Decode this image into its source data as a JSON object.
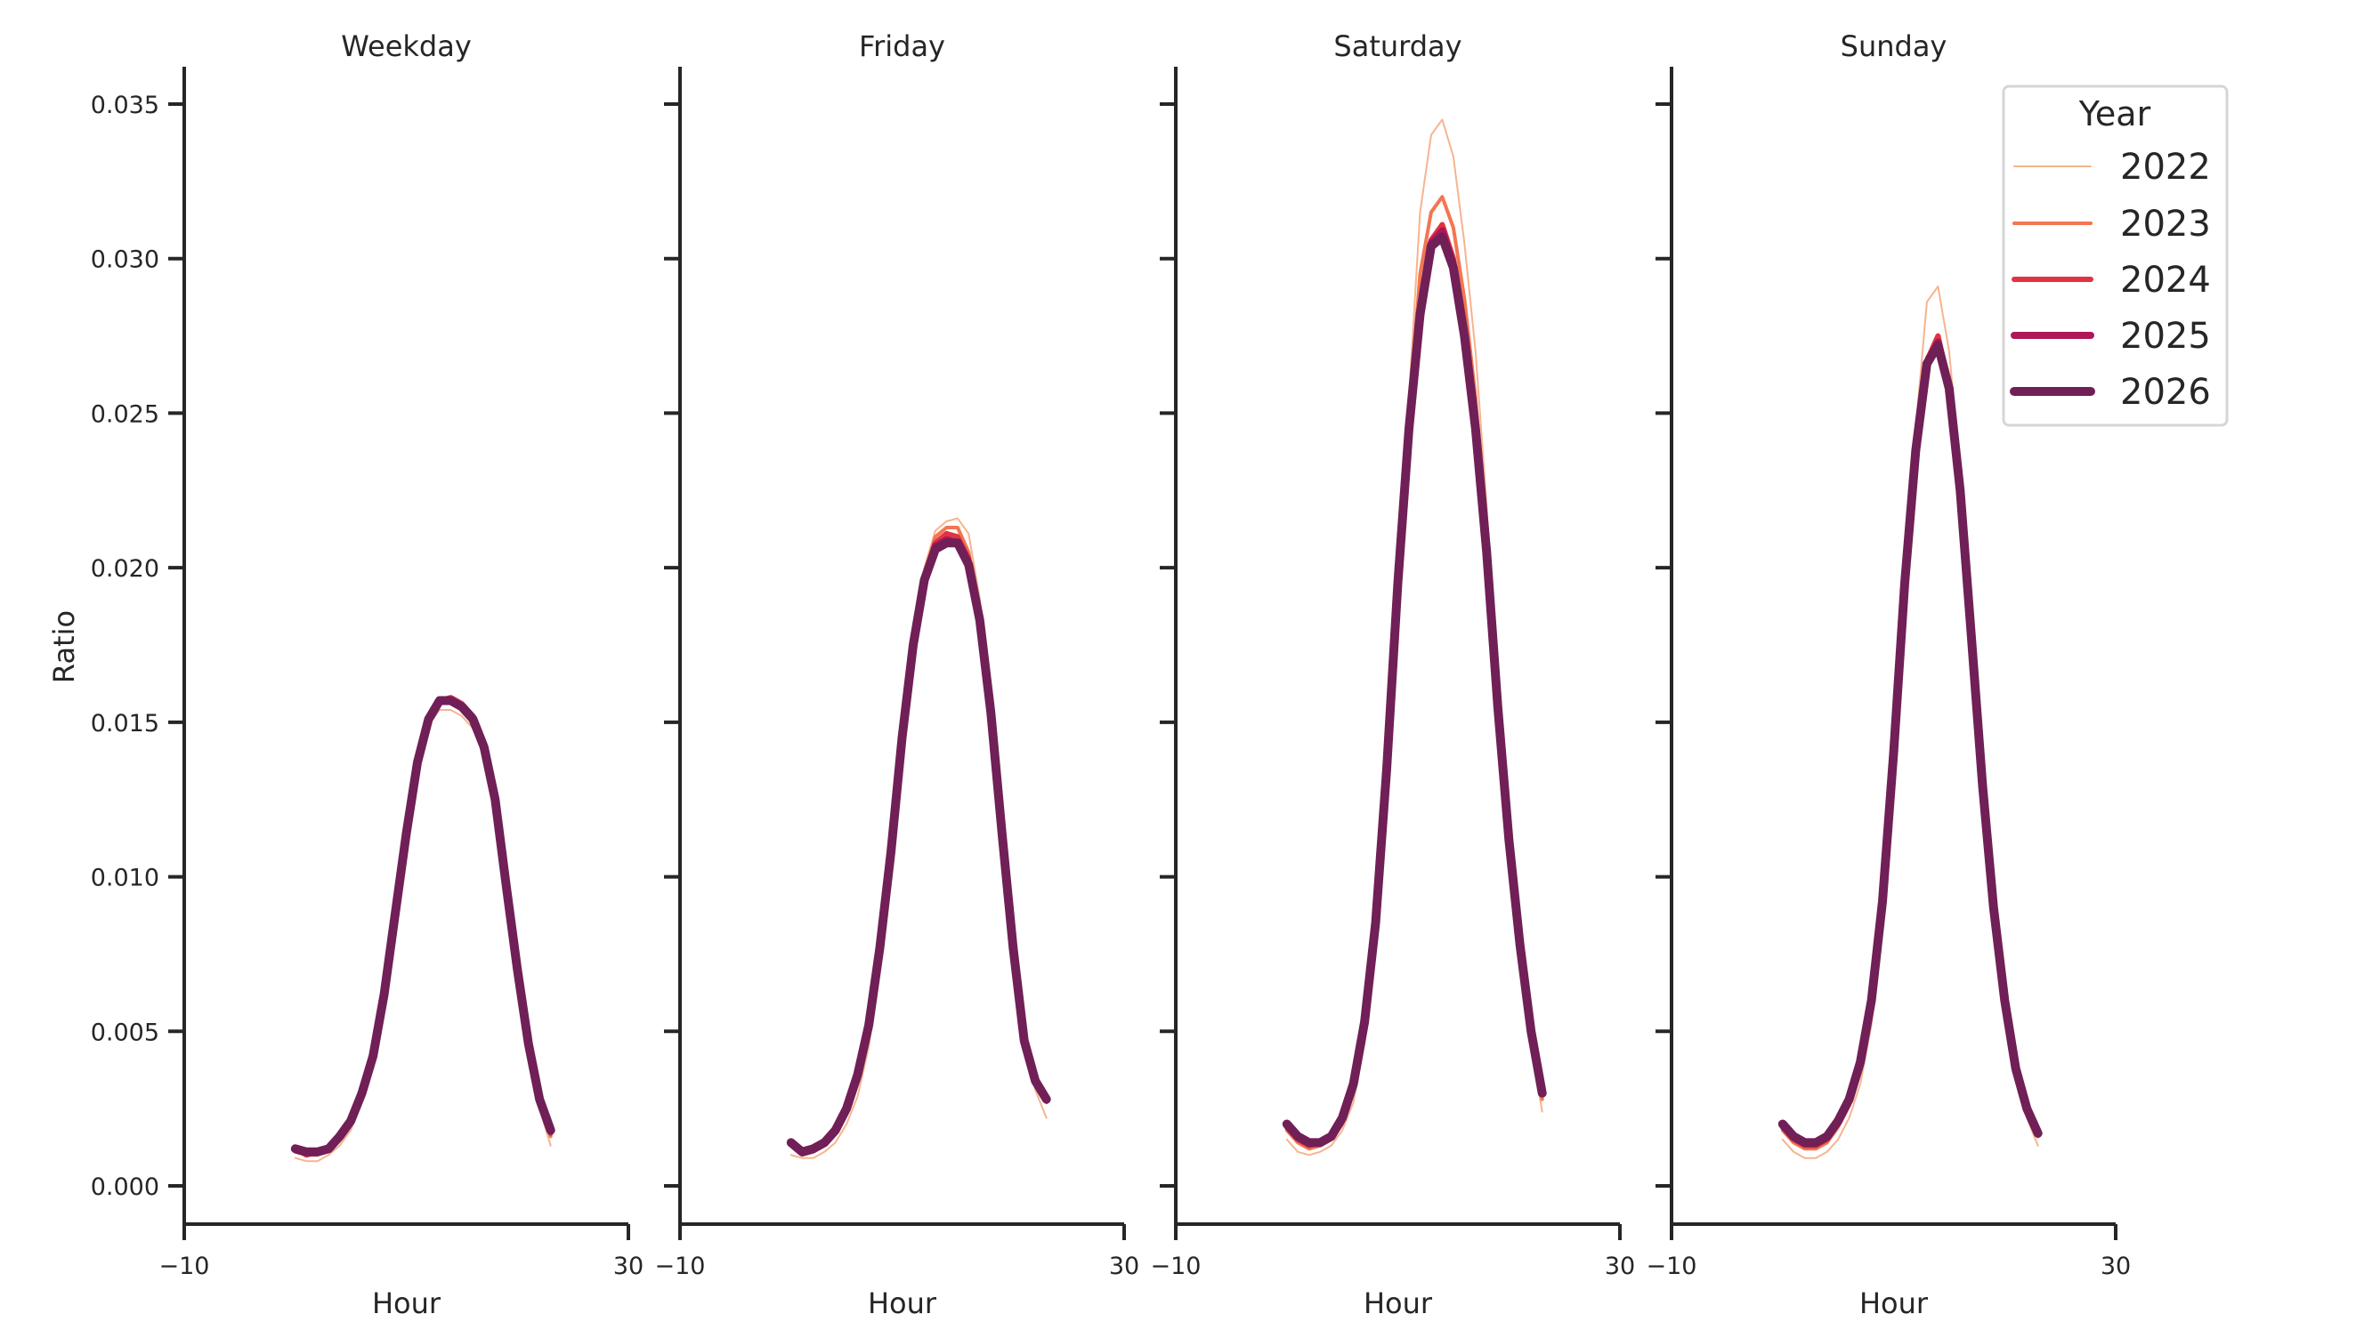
{
  "chart_data": {
    "type": "line",
    "layout": "facet-grid (1 row x 4 columns, shared y-axis)",
    "ylabel": "Ratio",
    "xlabel": "Hour",
    "xlim": [
      -10,
      30
    ],
    "xticks": [
      "−10",
      "30"
    ],
    "ylim": [
      -0.001,
      0.0362
    ],
    "yticks": [
      "0.000",
      "0.005",
      "0.010",
      "0.015",
      "0.020",
      "0.025",
      "0.030",
      "0.035"
    ],
    "ytick_values": [
      0.0,
      0.005,
      0.01,
      0.015,
      0.02,
      0.025,
      0.03,
      0.035
    ],
    "grid": false,
    "legend": {
      "title": "Year",
      "position": "upper right",
      "entries": [
        {
          "label": "2022",
          "color": "#f6b48f",
          "width": 2
        },
        {
          "label": "2023",
          "color": "#f37651",
          "width": 4
        },
        {
          "label": "2024",
          "color": "#e13342",
          "width": 6
        },
        {
          "label": "2025",
          "color": "#ad1759",
          "width": 8
        },
        {
          "label": "2026",
          "color": "#701f57",
          "width": 10
        }
      ]
    },
    "x": [
      0,
      1,
      2,
      3,
      4,
      5,
      6,
      7,
      8,
      9,
      10,
      11,
      12,
      13,
      14,
      15,
      16,
      17,
      18,
      19,
      20,
      21,
      22,
      23
    ],
    "panels": [
      {
        "title": "Weekday",
        "series": [
          {
            "name": "2022",
            "values": [
              0.0009,
              0.0008,
              0.0008,
              0.001,
              0.0013,
              0.0018,
              0.0027,
              0.0038,
              0.0056,
              0.0082,
              0.011,
              0.0134,
              0.0149,
              0.0154,
              0.0154,
              0.0152,
              0.0148,
              0.014,
              0.0123,
              0.0096,
              0.0068,
              0.0043,
              0.0025,
              0.0013
            ]
          },
          {
            "name": "2023",
            "values": [
              0.0011,
              0.001,
              0.001,
              0.0012,
              0.0016,
              0.0021,
              0.0029,
              0.0041,
              0.0061,
              0.0087,
              0.0113,
              0.0136,
              0.0151,
              0.0157,
              0.0157,
              0.0155,
              0.0151,
              0.0142,
              0.0125,
              0.0097,
              0.007,
              0.0045,
              0.0027,
              0.0016
            ]
          },
          {
            "name": "2024",
            "values": [
              0.0012,
              0.001,
              0.0011,
              0.0012,
              0.0016,
              0.0021,
              0.003,
              0.0042,
              0.0062,
              0.0088,
              0.0114,
              0.0137,
              0.0151,
              0.0157,
              0.0158,
              0.0156,
              0.0152,
              0.0142,
              0.0125,
              0.0097,
              0.007,
              0.0046,
              0.0028,
              0.0017
            ]
          },
          {
            "name": "2025",
            "values": [
              0.0012,
              0.0011,
              0.0011,
              0.0012,
              0.0016,
              0.0021,
              0.003,
              0.0042,
              0.0062,
              0.0088,
              0.0114,
              0.0137,
              0.0151,
              0.0157,
              0.0157,
              0.0155,
              0.0151,
              0.0142,
              0.0125,
              0.0097,
              0.007,
              0.0046,
              0.0028,
              0.0018
            ]
          },
          {
            "name": "2026",
            "values": [
              0.0012,
              0.0011,
              0.0011,
              0.0012,
              0.0016,
              0.0021,
              0.003,
              0.0042,
              0.0062,
              0.0088,
              0.0114,
              0.0137,
              0.0151,
              0.0157,
              0.0157,
              0.0155,
              0.0151,
              0.0142,
              0.0125,
              0.0097,
              0.007,
              0.0046,
              0.0028,
              0.0018
            ]
          }
        ]
      },
      {
        "title": "Friday",
        "series": [
          {
            "name": "2022",
            "values": [
              0.001,
              0.0009,
              0.0009,
              0.0011,
              0.0014,
              0.002,
              0.0029,
              0.0045,
              0.007,
              0.0103,
              0.0143,
              0.0176,
              0.02,
              0.0212,
              0.0215,
              0.0216,
              0.0211,
              0.019,
              0.0158,
              0.0116,
              0.0077,
              0.0046,
              0.0031,
              0.0022
            ]
          },
          {
            "name": "2023",
            "values": [
              0.0013,
              0.001,
              0.0011,
              0.0013,
              0.0017,
              0.0024,
              0.0035,
              0.0051,
              0.0076,
              0.0107,
              0.0145,
              0.0176,
              0.0198,
              0.021,
              0.0213,
              0.0213,
              0.0205,
              0.0186,
              0.0155,
              0.0115,
              0.0077,
              0.0047,
              0.0033,
              0.0027
            ]
          },
          {
            "name": "2024",
            "values": [
              0.0014,
              0.0011,
              0.0012,
              0.0014,
              0.0018,
              0.0025,
              0.0036,
              0.0052,
              0.0077,
              0.0108,
              0.0145,
              0.0175,
              0.0197,
              0.0208,
              0.0211,
              0.021,
              0.0203,
              0.0184,
              0.0154,
              0.0114,
              0.0077,
              0.0047,
              0.0034,
              0.0028
            ]
          },
          {
            "name": "2025",
            "values": [
              0.0014,
              0.0011,
              0.0012,
              0.0014,
              0.0018,
              0.0025,
              0.0036,
              0.0052,
              0.0077,
              0.0108,
              0.0145,
              0.0175,
              0.0196,
              0.0207,
              0.0209,
              0.0208,
              0.0201,
              0.0183,
              0.0153,
              0.0114,
              0.0077,
              0.0047,
              0.0034,
              0.0028
            ]
          },
          {
            "name": "2026",
            "values": [
              0.0014,
              0.0011,
              0.0012,
              0.0014,
              0.0018,
              0.0025,
              0.0036,
              0.0052,
              0.0077,
              0.0108,
              0.0145,
              0.0175,
              0.0196,
              0.0206,
              0.0208,
              0.0208,
              0.0201,
              0.0183,
              0.0153,
              0.0114,
              0.0077,
              0.0047,
              0.0034,
              0.0028
            ]
          }
        ]
      },
      {
        "title": "Saturday",
        "series": [
          {
            "name": "2022",
            "values": [
              0.0015,
              0.0011,
              0.001,
              0.0011,
              0.0013,
              0.0018,
              0.0027,
              0.0046,
              0.008,
              0.013,
              0.0195,
              0.0255,
              0.0315,
              0.034,
              0.0345,
              0.0333,
              0.0305,
              0.027,
              0.022,
              0.016,
              0.0112,
              0.0075,
              0.0045,
              0.0024
            ]
          },
          {
            "name": "2023",
            "values": [
              0.0018,
              0.0014,
              0.0012,
              0.0013,
              0.0015,
              0.002,
              0.0031,
              0.0051,
              0.0084,
              0.0133,
              0.0195,
              0.025,
              0.0295,
              0.0315,
              0.032,
              0.031,
              0.0287,
              0.0255,
              0.021,
              0.0158,
              0.0112,
              0.0077,
              0.0048,
              0.0028
            ]
          },
          {
            "name": "2024",
            "values": [
              0.0019,
              0.0015,
              0.0013,
              0.0014,
              0.0016,
              0.0022,
              0.0033,
              0.0053,
              0.0085,
              0.0135,
              0.0195,
              0.0247,
              0.0285,
              0.0306,
              0.0311,
              0.03,
              0.0278,
              0.0247,
              0.0206,
              0.0156,
              0.0112,
              0.0078,
              0.0049,
              0.003
            ]
          },
          {
            "name": "2025",
            "values": [
              0.002,
              0.0016,
              0.0014,
              0.0014,
              0.0016,
              0.0022,
              0.0033,
              0.0053,
              0.0085,
              0.0135,
              0.0195,
              0.0245,
              0.0283,
              0.0305,
              0.0309,
              0.0298,
              0.0276,
              0.0246,
              0.0205,
              0.0155,
              0.0112,
              0.0078,
              0.005,
              0.003
            ]
          },
          {
            "name": "2026",
            "values": [
              0.002,
              0.0016,
              0.0014,
              0.0014,
              0.0016,
              0.0022,
              0.0033,
              0.0053,
              0.0085,
              0.0135,
              0.0195,
              0.0245,
              0.0282,
              0.0304,
              0.0307,
              0.0297,
              0.0275,
              0.0245,
              0.0205,
              0.0155,
              0.0112,
              0.0078,
              0.005,
              0.003
            ]
          }
        ]
      },
      {
        "title": "Sunday",
        "series": [
          {
            "name": "2022",
            "values": [
              0.0015,
              0.0011,
              0.0009,
              0.0009,
              0.0011,
              0.0015,
              0.0022,
              0.0033,
              0.0052,
              0.0085,
              0.0135,
              0.0195,
              0.0245,
              0.0286,
              0.0291,
              0.027,
              0.0232,
              0.0183,
              0.0133,
              0.009,
              0.0058,
              0.0035,
              0.0022,
              0.0013
            ]
          },
          {
            "name": "2023",
            "values": [
              0.0018,
              0.0014,
              0.0012,
              0.0012,
              0.0014,
              0.0019,
              0.0026,
              0.0038,
              0.0058,
              0.009,
              0.0139,
              0.0195,
              0.024,
              0.0268,
              0.0274,
              0.0259,
              0.0226,
              0.0179,
              0.0131,
              0.009,
              0.0059,
              0.0037,
              0.0024,
              0.0016
            ]
          },
          {
            "name": "2024",
            "values": [
              0.0019,
              0.0015,
              0.0013,
              0.0013,
              0.0015,
              0.002,
              0.0027,
              0.0039,
              0.0059,
              0.0091,
              0.014,
              0.0195,
              0.0239,
              0.0267,
              0.0275,
              0.0259,
              0.0225,
              0.0178,
              0.013,
              0.009,
              0.006,
              0.0038,
              0.0025,
              0.0017
            ]
          },
          {
            "name": "2025",
            "values": [
              0.002,
              0.0016,
              0.0014,
              0.0014,
              0.0016,
              0.0021,
              0.0028,
              0.004,
              0.006,
              0.0092,
              0.014,
              0.0195,
              0.0238,
              0.0266,
              0.0273,
              0.0258,
              0.0225,
              0.0178,
              0.013,
              0.009,
              0.006,
              0.0038,
              0.0025,
              0.0017
            ]
          },
          {
            "name": "2026",
            "values": [
              0.002,
              0.0016,
              0.0014,
              0.0014,
              0.0016,
              0.0021,
              0.0028,
              0.004,
              0.006,
              0.0092,
              0.014,
              0.0195,
              0.0238,
              0.0266,
              0.0272,
              0.0258,
              0.0225,
              0.0178,
              0.013,
              0.009,
              0.006,
              0.0038,
              0.0025,
              0.0017
            ]
          }
        ]
      }
    ]
  }
}
